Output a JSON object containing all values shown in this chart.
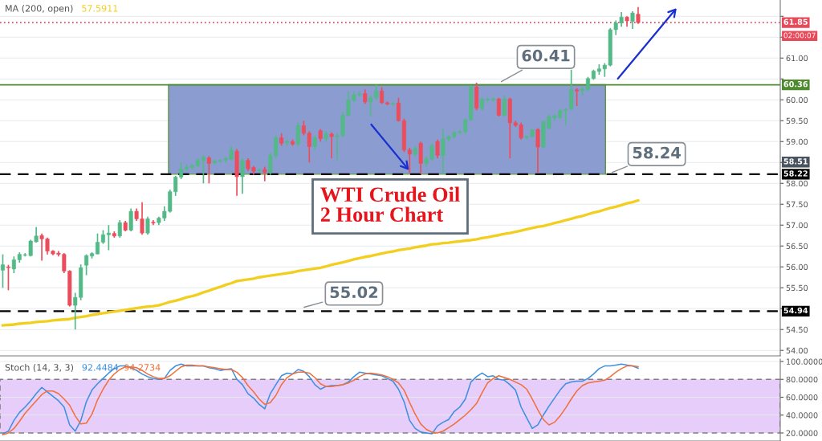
{
  "chart_data": [
    {
      "type": "candlestick",
      "title": "WTI Crude Oil\n2 Hour Chart",
      "subtitle": "MA (200, open)",
      "categories": [
        null,
        null,
        null,
        null,
        null,
        null,
        null,
        null,
        null,
        null,
        null,
        null,
        null,
        null,
        null,
        null,
        null,
        null,
        null,
        null,
        null,
        null,
        null,
        null,
        null,
        null,
        null,
        null,
        null,
        null,
        null,
        null,
        null,
        null,
        null,
        null,
        null,
        null,
        null,
        null,
        null,
        null,
        null,
        null,
        null,
        null,
        null,
        null,
        null,
        null,
        null,
        null,
        null,
        null,
        null,
        null,
        null,
        null,
        null,
        null,
        null,
        null,
        null,
        null,
        null,
        null,
        null,
        null,
        null,
        null,
        null,
        null,
        null,
        null,
        null,
        null,
        null,
        null,
        null,
        null,
        null,
        null,
        null,
        null,
        null,
        null,
        null,
        null,
        null,
        null,
        null,
        null,
        null,
        null,
        null,
        null,
        null,
        null,
        null,
        null,
        null,
        null,
        null,
        null,
        null,
        null,
        null,
        null,
        null,
        null,
        null,
        null,
        null,
        null,
        null,
        null,
        null,
        null,
        null,
        null,
        null,
        null,
        null,
        null,
        null,
        null,
        null,
        null,
        null,
        null,
        null,
        null,
        null,
        null,
        null,
        null,
        null,
        null,
        null,
        null
      ],
      "ohlc": [
        [
          55.92,
          56.3,
          55.5,
          56.05
        ],
        [
          56.0,
          56.05,
          55.44,
          55.98
        ],
        [
          55.95,
          56.25,
          55.85,
          56.17
        ],
        [
          56.17,
          56.35,
          56.1,
          56.3
        ],
        [
          56.28,
          56.33,
          56.25,
          56.29
        ],
        [
          56.27,
          56.65,
          56.25,
          56.62
        ],
        [
          56.6,
          56.95,
          56.58,
          56.74
        ],
        [
          56.75,
          56.8,
          56.15,
          56.67
        ],
        [
          56.67,
          56.7,
          56.3,
          56.38
        ],
        [
          56.38,
          56.4,
          56.28,
          56.31
        ],
        [
          56.33,
          56.38,
          56.25,
          56.3
        ],
        [
          56.3,
          56.33,
          55.85,
          55.9
        ],
        [
          55.9,
          55.92,
          55.05,
          55.08
        ],
        [
          55.08,
          55.38,
          54.5,
          55.27
        ],
        [
          55.27,
          56.06,
          55.2,
          55.98
        ],
        [
          56.04,
          56.3,
          55.8,
          56.27
        ],
        [
          56.26,
          56.35,
          56.2,
          56.32
        ],
        [
          56.31,
          56.8,
          56.3,
          56.59
        ],
        [
          56.59,
          56.88,
          56.55,
          56.77
        ],
        [
          56.77,
          57.0,
          56.4,
          56.81
        ],
        [
          56.8,
          56.85,
          56.7,
          56.74
        ],
        [
          56.74,
          57.12,
          56.7,
          57.06
        ],
        [
          57.06,
          57.1,
          56.85,
          56.88
        ],
        [
          56.88,
          57.4,
          56.85,
          57.33
        ],
        [
          57.33,
          57.4,
          57.1,
          57.15
        ],
        [
          57.15,
          57.55,
          56.77,
          56.81
        ],
        [
          56.81,
          57.2,
          56.77,
          57.15
        ],
        [
          57.07,
          57.12,
          57.0,
          57.05
        ],
        [
          57.06,
          57.2,
          57.0,
          57.17
        ],
        [
          57.17,
          57.45,
          57.1,
          57.33
        ],
        [
          57.33,
          57.85,
          57.3,
          57.8
        ],
        [
          57.8,
          58.18,
          57.7,
          58.15
        ],
        [
          58.15,
          58.5,
          58.1,
          58.34
        ],
        [
          58.35,
          58.45,
          58.3,
          58.38
        ],
        [
          58.38,
          58.46,
          58.33,
          58.42
        ],
        [
          58.42,
          58.6,
          58.4,
          58.55
        ],
        [
          58.55,
          58.68,
          58.0,
          58.62
        ],
        [
          58.61,
          58.65,
          58.0,
          58.48
        ],
        [
          58.5,
          58.56,
          58.45,
          58.53
        ],
        [
          58.53,
          58.58,
          58.5,
          58.55
        ],
        [
          58.56,
          58.63,
          58.5,
          58.6
        ],
        [
          58.58,
          58.9,
          58.55,
          58.8
        ],
        [
          58.77,
          58.82,
          57.7,
          58.16
        ],
        [
          58.16,
          58.6,
          57.75,
          58.55
        ],
        [
          58.55,
          58.6,
          58.3,
          58.35
        ],
        [
          58.38,
          58.42,
          58.2,
          58.29
        ],
        [
          58.3,
          58.36,
          58.25,
          58.32
        ],
        [
          58.33,
          58.4,
          58.05,
          58.26
        ],
        [
          58.26,
          58.72,
          58.2,
          58.67
        ],
        [
          58.67,
          59.15,
          58.6,
          59.09
        ],
        [
          59.09,
          59.2,
          58.9,
          58.96
        ],
        [
          58.97,
          59.05,
          58.9,
          59.0
        ],
        [
          59.0,
          59.05,
          58.9,
          58.94
        ],
        [
          58.94,
          59.45,
          58.9,
          59.38
        ],
        [
          59.38,
          59.5,
          59.15,
          59.2
        ],
        [
          59.2,
          59.25,
          58.5,
          58.88
        ],
        [
          58.88,
          59.15,
          58.8,
          59.09
        ],
        [
          59.26,
          59.3,
          59.0,
          59.07
        ],
        [
          59.07,
          59.25,
          59.0,
          59.19
        ],
        [
          59.18,
          59.22,
          58.6,
          59.12
        ],
        [
          59.12,
          59.2,
          58.55,
          59.14
        ],
        [
          59.15,
          59.7,
          59.1,
          59.63
        ],
        [
          59.63,
          60.2,
          59.6,
          59.99
        ],
        [
          59.99,
          60.2,
          59.95,
          60.12
        ],
        [
          60.12,
          60.2,
          60.08,
          60.14
        ],
        [
          60.15,
          60.25,
          59.9,
          59.95
        ],
        [
          59.95,
          60.1,
          59.6,
          60.05
        ],
        [
          60.05,
          60.36,
          60.0,
          60.21
        ],
        [
          60.21,
          60.3,
          59.9,
          59.93
        ],
        [
          59.93,
          59.96,
          59.87,
          59.9
        ],
        [
          59.9,
          59.95,
          59.85,
          59.91
        ],
        [
          59.92,
          60.05,
          59.48,
          59.5
        ],
        [
          59.5,
          59.55,
          58.75,
          58.8
        ],
        [
          58.8,
          58.85,
          58.24,
          58.7
        ],
        [
          58.7,
          58.9,
          58.65,
          58.83
        ],
        [
          58.96,
          59.0,
          58.22,
          58.48
        ],
        [
          58.48,
          58.65,
          58.4,
          58.59
        ],
        [
          58.58,
          58.95,
          58.55,
          58.9
        ],
        [
          59.0,
          59.05,
          58.6,
          58.67
        ],
        [
          58.67,
          59.3,
          58.22,
          59.06
        ],
        [
          59.06,
          59.15,
          59.0,
          59.12
        ],
        [
          59.12,
          59.25,
          59.08,
          59.22
        ],
        [
          59.22,
          59.28,
          59.18,
          59.24
        ],
        [
          59.24,
          59.55,
          59.2,
          59.52
        ],
        [
          59.52,
          60.35,
          59.5,
          60.31
        ],
        [
          60.31,
          60.41,
          59.75,
          59.8
        ],
        [
          59.8,
          60.05,
          59.75,
          60.02
        ],
        [
          60.0,
          60.05,
          59.95,
          60.01
        ],
        [
          60.0,
          60.06,
          59.95,
          60.02
        ],
        [
          60.02,
          60.05,
          59.6,
          59.63
        ],
        [
          59.63,
          60.1,
          59.6,
          60.02
        ],
        [
          60.02,
          60.05,
          58.6,
          59.45
        ],
        [
          59.45,
          59.5,
          59.35,
          59.39
        ],
        [
          59.4,
          59.45,
          59.05,
          59.09
        ],
        [
          59.1,
          59.15,
          59.05,
          59.12
        ],
        [
          59.12,
          59.3,
          59.1,
          59.28
        ],
        [
          59.29,
          59.32,
          58.24,
          58.87
        ],
        [
          58.87,
          59.5,
          58.85,
          59.48
        ],
        [
          59.32,
          59.65,
          59.3,
          59.6
        ],
        [
          59.57,
          59.65,
          59.5,
          59.62
        ],
        [
          59.58,
          59.78,
          59.55,
          59.74
        ],
        [
          59.74,
          59.8,
          59.4,
          59.77
        ],
        [
          59.78,
          60.72,
          59.75,
          60.24
        ],
        [
          60.24,
          60.28,
          59.85,
          60.21
        ],
        [
          60.22,
          60.3,
          60.1,
          60.26
        ],
        [
          60.25,
          60.55,
          60.2,
          60.51
        ],
        [
          60.51,
          60.72,
          60.48,
          60.69
        ],
        [
          60.68,
          60.85,
          60.6,
          60.74
        ],
        [
          60.74,
          60.88,
          60.55,
          60.83
        ],
        [
          60.83,
          61.72,
          60.8,
          61.68
        ],
        [
          61.68,
          61.9,
          61.55,
          61.84
        ],
        [
          61.84,
          62.1,
          61.75,
          61.98
        ],
        [
          61.98,
          62.0,
          61.75,
          61.89
        ],
        [
          61.88,
          62.12,
          61.7,
          62.08
        ],
        [
          62.05,
          62.22,
          61.82,
          61.85
        ],
        null,
        null,
        null,
        null,
        null,
        null,
        null,
        null,
        null,
        null,
        null,
        null,
        null,
        null,
        null,
        null,
        null,
        null,
        null,
        null,
        null,
        null,
        null,
        null,
        null
      ],
      "series": [
        {
          "type": "line",
          "name": "57.5911",
          "color": "#f2cf1f",
          "values": [
            54.6,
            54.61,
            54.62,
            54.64,
            54.65,
            54.66,
            54.68,
            54.69,
            54.7,
            54.72,
            54.73,
            54.74,
            54.75,
            54.78,
            54.8,
            54.82,
            54.85,
            54.87,
            54.89,
            54.91,
            54.93,
            54.95,
            54.97,
            54.99,
            55.01,
            55.03,
            55.05,
            55.06,
            55.08,
            55.12,
            55.16,
            55.19,
            55.23,
            55.27,
            55.3,
            55.34,
            55.39,
            55.43,
            55.48,
            55.52,
            55.57,
            55.61,
            55.66,
            55.68,
            55.7,
            55.72,
            55.75,
            55.77,
            55.79,
            55.81,
            55.83,
            55.85,
            55.87,
            55.9,
            55.92,
            55.94,
            55.96,
            55.98,
            56.01,
            56.05,
            56.08,
            56.11,
            56.14,
            56.18,
            56.21,
            56.24,
            56.26,
            56.29,
            56.32,
            56.35,
            56.37,
            56.4,
            56.42,
            56.44,
            56.47,
            56.49,
            56.51,
            56.54,
            56.55,
            56.57,
            56.58,
            56.6,
            56.61,
            56.63,
            56.64,
            56.66,
            56.69,
            56.71,
            56.74,
            56.76,
            56.79,
            56.81,
            56.84,
            56.87,
            56.9,
            56.93,
            56.96,
            56.98,
            57.01,
            57.05,
            57.08,
            57.12,
            57.15,
            57.19,
            57.22,
            57.26,
            57.3,
            57.33,
            57.37,
            57.41,
            57.44,
            57.48,
            57.52,
            57.55,
            57.5911,
            null,
            null,
            null,
            null,
            null,
            null,
            null,
            null,
            null,
            null,
            null,
            null,
            null,
            null,
            null,
            null,
            null,
            null,
            null,
            null,
            null,
            null,
            null,
            null,
            null
          ]
        }
      ],
      "ylim": [
        53.87,
        62.39
      ],
      "yticks": [
        {
          "value": 54,
          "label": "54.00"
        },
        {
          "value": 54.5,
          "label": "54.50"
        },
        {
          "value": 55,
          "label": null
        },
        {
          "value": 55.5,
          "label": "55.50"
        },
        {
          "value": 56,
          "label": "56.00"
        },
        {
          "value": 56.5,
          "label": "56.50"
        },
        {
          "value": 57,
          "label": "57.00"
        },
        {
          "value": 57.5,
          "label": "57.50"
        },
        {
          "value": 58,
          "label": "58.00"
        },
        {
          "value": 58.5,
          "label": null
        },
        {
          "value": 59,
          "label": "59.00"
        },
        {
          "value": 59.5,
          "label": "59.50"
        },
        {
          "value": 60,
          "label": "60.00"
        },
        {
          "value": 60.5,
          "label": null
        },
        {
          "value": 61,
          "label": "61.00"
        },
        {
          "value": 61.5,
          "label": null
        },
        {
          "value": 62,
          "label": null
        }
      ],
      "ref_lines": [
        {
          "axis": "y",
          "value": 61.85,
          "label": "61.85",
          "color": "#e84a5a",
          "line_style": "dotted"
        },
        {
          "axis": "y",
          "value": 60.36,
          "label": "60.36",
          "color": "#4e8a2e",
          "line_style": "solid"
        },
        {
          "axis": "y",
          "value": 58.22,
          "label": "58.22",
          "color": "#000000",
          "line_style": "dashed"
        },
        {
          "axis": "y",
          "value": 54.94,
          "label": "54.94",
          "color": "#000000",
          "line_style": "dashed"
        }
      ],
      "bands": [
        {
          "axis": "y",
          "from": 58.22,
          "to": 60.36,
          "color": "#7f92cc"
        }
      ],
      "annotations": [
        {
          "text": "60.41",
          "y": 60.41
        },
        {
          "text": "58.24",
          "y": 58.24
        },
        {
          "text": "55.02",
          "y": 55.02
        },
        {
          "text": "58.51",
          "y": 58.51
        },
        "02:00:07"
      ],
      "grid": "y",
      "tick_labels": "y"
    },
    {
      "type": "line",
      "title": "Stoch (14, 3, 3)",
      "categories": [
        null,
        null,
        null,
        null,
        null,
        null,
        null,
        null,
        null,
        null,
        null,
        null,
        null,
        null,
        null,
        null,
        null,
        null,
        null,
        null,
        null,
        null,
        null,
        null,
        null,
        null,
        null,
        null,
        null,
        null,
        null,
        null,
        null,
        null,
        null,
        null,
        null,
        null,
        null,
        null,
        null,
        null,
        null,
        null,
        null,
        null,
        null,
        null,
        null,
        null,
        null,
        null,
        null,
        null,
        null,
        null,
        null,
        null,
        null,
        null,
        null,
        null,
        null,
        null,
        null,
        null,
        null,
        null,
        null,
        null,
        null,
        null,
        null,
        null,
        null,
        null,
        null,
        null,
        null,
        null,
        null,
        null,
        null,
        null,
        null,
        null,
        null,
        null,
        null,
        null,
        null,
        null,
        null,
        null,
        null,
        null,
        null,
        null,
        null,
        null,
        null,
        null,
        null,
        null,
        null,
        null,
        null,
        null,
        null,
        null,
        null,
        null,
        null,
        null,
        null,
        null,
        null,
        null,
        null,
        null,
        null,
        null,
        null,
        null,
        null,
        null,
        null,
        null,
        null,
        null,
        null,
        null,
        null,
        null,
        null,
        null,
        null,
        null,
        null,
        null
      ],
      "series": [
        {
          "name": "92.4484",
          "color": "#3d8fe0",
          "values": [
            19,
            22,
            34,
            43,
            49,
            56,
            64,
            71,
            66,
            61,
            56,
            49,
            29,
            22,
            34,
            55,
            68,
            75,
            81,
            87,
            92,
            95,
            95,
            93,
            90,
            86,
            83,
            81,
            80,
            81,
            90,
            95,
            97,
            95,
            95,
            95,
            95,
            93,
            92,
            90,
            91,
            92,
            80,
            74,
            64,
            59,
            52,
            47,
            64,
            74,
            84,
            87,
            86,
            91,
            89,
            83,
            74,
            69,
            72,
            73,
            73,
            74,
            77,
            83,
            88,
            87,
            86,
            85,
            84,
            81,
            78,
            69,
            55,
            34,
            25,
            21,
            20,
            19,
            28,
            32,
            35,
            44,
            49,
            58,
            77,
            83,
            87,
            83,
            84,
            80,
            79,
            74,
            68,
            49,
            37,
            25,
            29,
            40,
            50,
            59,
            68,
            75,
            77,
            78,
            78,
            81,
            86,
            92,
            95,
            95,
            96,
            97,
            96,
            95,
            92.4484,
            null,
            null,
            null,
            null,
            null,
            null,
            null,
            null,
            null,
            null,
            null,
            null,
            null,
            null,
            null,
            null,
            null,
            null,
            null,
            null,
            null,
            null,
            null,
            null,
            null
          ]
        },
        {
          "name": "94.2734",
          "color": "#f0703c",
          "values": [
            18,
            20,
            25,
            33,
            42,
            49,
            56,
            63,
            67,
            67,
            64,
            58,
            51,
            39,
            30,
            31,
            41,
            57,
            69,
            79,
            86,
            91,
            94,
            94,
            93,
            90,
            86,
            83,
            81,
            81,
            84,
            89,
            94,
            96,
            96,
            95,
            95,
            94,
            93,
            92,
            91,
            91,
            88,
            82,
            73,
            66,
            58,
            52,
            54,
            62,
            74,
            82,
            86,
            88,
            88,
            87,
            82,
            75,
            72,
            72,
            73,
            74,
            76,
            79,
            83,
            86,
            87,
            86,
            85,
            83,
            80,
            76,
            68,
            54,
            41,
            30,
            24,
            21,
            20,
            22,
            26,
            30,
            35,
            40,
            46,
            53,
            65,
            76,
            81,
            84,
            82,
            80,
            77,
            74,
            69,
            58,
            46,
            35,
            29,
            32,
            39,
            48,
            58,
            67,
            73,
            76,
            77,
            78,
            79,
            83,
            88,
            92,
            95,
            95,
            94.2734,
            null,
            null,
            null,
            null,
            null,
            null,
            null,
            null,
            null,
            null,
            null,
            null,
            null,
            null,
            null,
            null,
            null,
            null,
            null,
            null,
            null,
            null,
            null,
            null,
            null
          ]
        }
      ],
      "ylim": [
        11,
        102.7
      ],
      "yticks": [
        {
          "value": 20,
          "label": "20.0000"
        },
        {
          "value": 40,
          "label": "40.0000"
        },
        {
          "value": 60,
          "label": "60.0000"
        },
        {
          "value": 80,
          "label": "80.0000"
        },
        {
          "value": 100,
          "label": "100.0000"
        }
      ],
      "bands": [
        {
          "axis": "y",
          "from": 20,
          "to": 80,
          "color": "#e6cdfa"
        }
      ],
      "grid": "y",
      "tick_labels": "y"
    }
  ]
}
